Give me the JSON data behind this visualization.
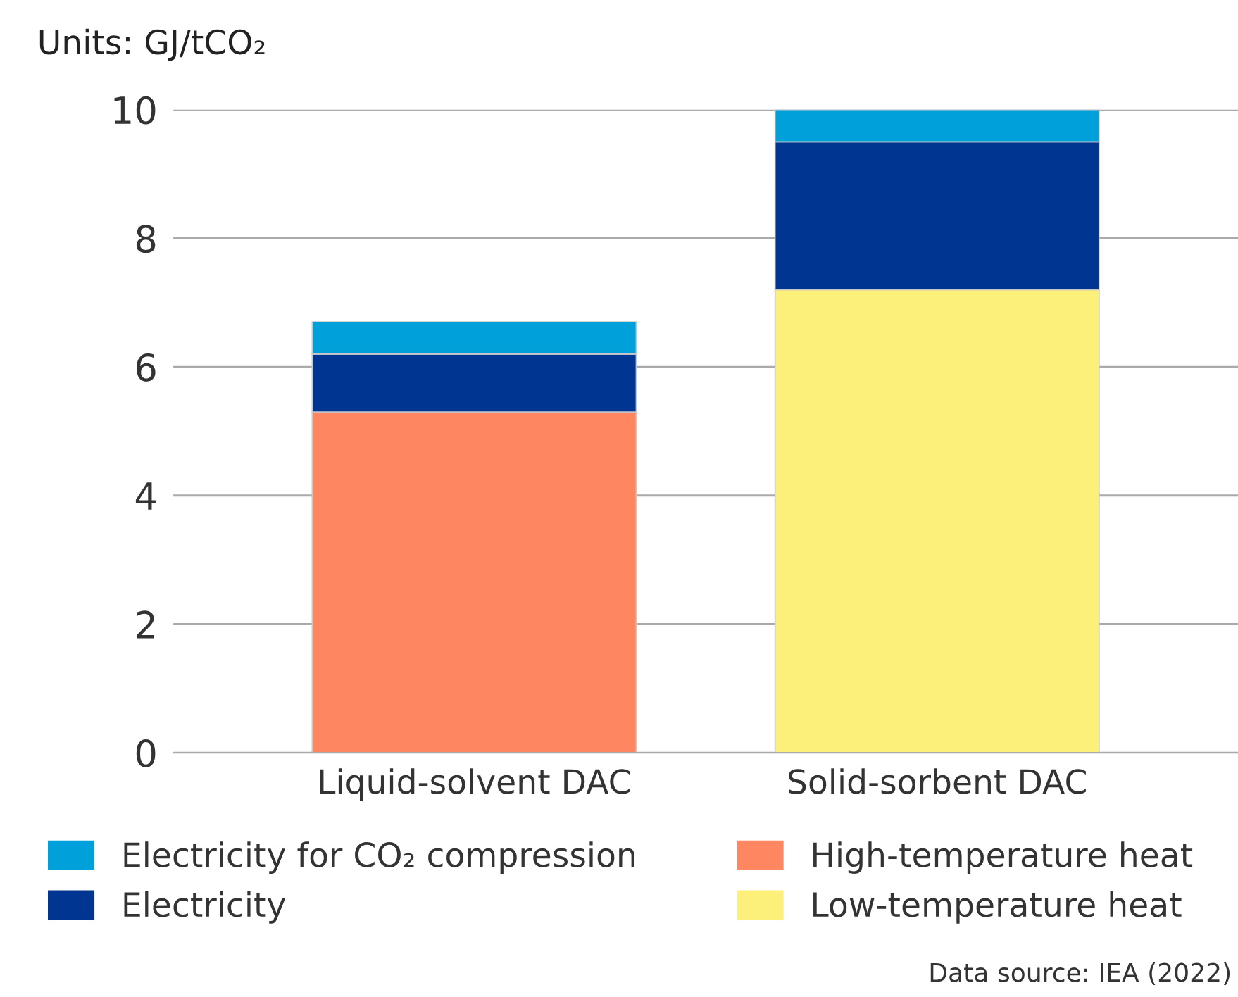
{
  "chart_data": {
    "type": "bar",
    "stacked": true,
    "title": "Units: GJ/tCO₂",
    "categories": [
      "Liquid-solvent DAC",
      "Solid-sorbent DAC"
    ],
    "series": [
      {
        "name": "Low-temperature heat",
        "color": "#fdf07a",
        "values": [
          null,
          7.2
        ]
      },
      {
        "name": "High-temperature heat",
        "color": "#fe8761",
        "values": [
          5.3,
          null
        ]
      },
      {
        "name": "Electricity",
        "color": "#003591",
        "values": [
          0.9,
          2.3
        ]
      },
      {
        "name": "Electricity for CO₂ compression",
        "color": "#00a0da",
        "values": [
          0.5,
          0.5
        ]
      }
    ],
    "ylim": [
      0,
      10
    ],
    "yticks": [
      0,
      2,
      4,
      6,
      8,
      10
    ],
    "grid": "y",
    "legend": "bottom",
    "annotations": [
      "Data source: IEA (2022)"
    ]
  }
}
